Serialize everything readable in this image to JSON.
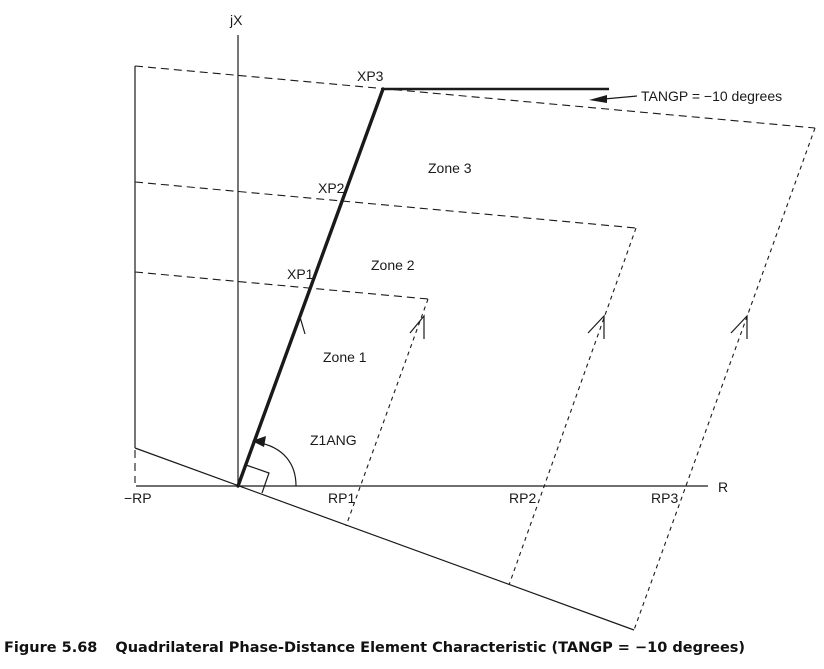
{
  "axes": {
    "x_label": "R",
    "y_label": "jX",
    "neg_label": "−RP"
  },
  "zones": [
    {
      "name": "Zone 1",
      "reach_x": "XP1",
      "reach_r": "RP1"
    },
    {
      "name": "Zone 2",
      "reach_x": "XP2",
      "reach_r": "RP2"
    },
    {
      "name": "Zone 3",
      "reach_x": "XP3",
      "reach_r": "RP3"
    }
  ],
  "angle_label": "Z1ANG",
  "tilt_annotation": "TANGP = −10 degrees",
  "caption": {
    "number": "Figure 5.68",
    "title": "Quadrilateral Phase-Distance Element Characteristic (TANGP = −10 degrees)"
  },
  "colors": {
    "line": "#1a1a1a",
    "background": "#ffffff"
  }
}
